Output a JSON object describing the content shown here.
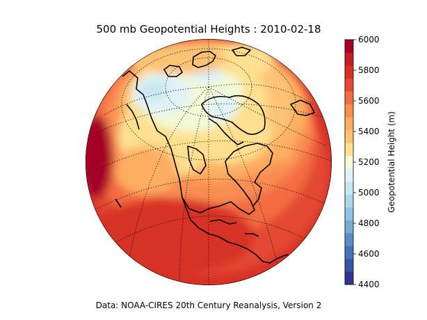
{
  "title": "500 mb Geopotential Heights : 2010-02-18",
  "caption": "Data: NOAA-CIRES 20th Century Reanalysis, Version 2",
  "colorbar": {
    "label": "Geopotential Height (m)",
    "min": 4400,
    "max": 6000,
    "step": 100,
    "tick_labels": [
      "4400",
      "4600",
      "4800",
      "5000",
      "5200",
      "5400",
      "5600",
      "5800",
      "6000"
    ],
    "colors": [
      "#313695",
      "#3a54a4",
      "#4575b4",
      "#5e8cc2",
      "#74add1",
      "#91c3de",
      "#abd9e9",
      "#c7e6f0",
      "#e0f3f8",
      "#f2fad6",
      "#fee090",
      "#fdc374",
      "#fdae61",
      "#f98e52",
      "#f46d43",
      "#e34a33",
      "#d73027",
      "#c21e26",
      "#a50026"
    ]
  },
  "map": {
    "projection": "orthographic",
    "field": "500 mb geopotential height",
    "region": "North America / Arctic"
  }
}
